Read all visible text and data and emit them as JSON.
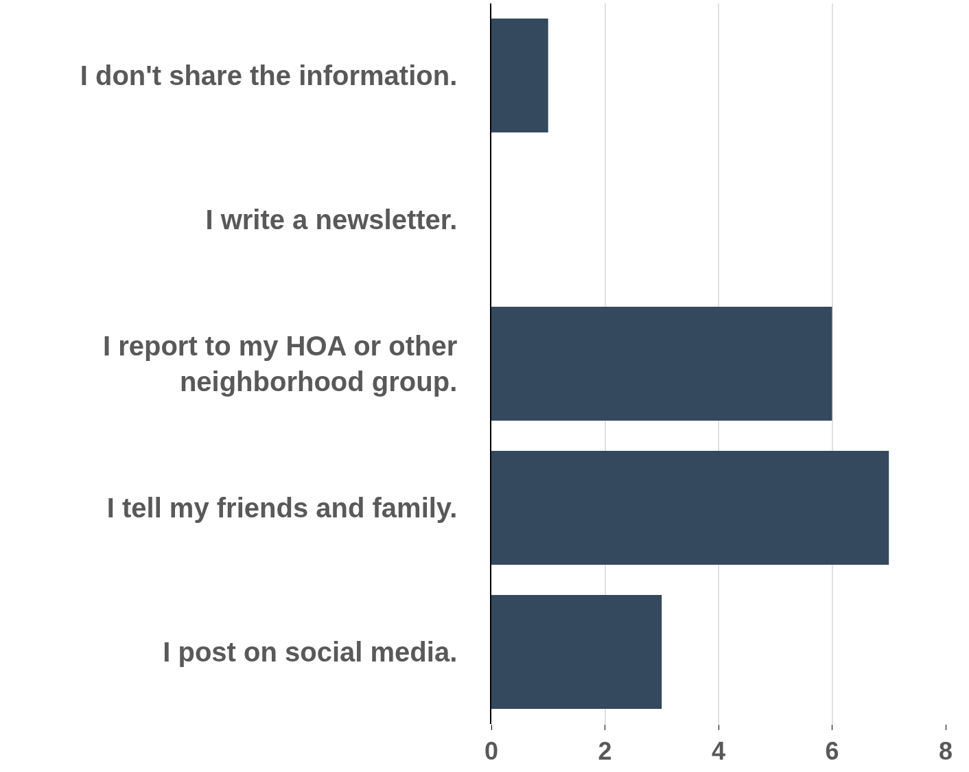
{
  "chart_data": {
    "type": "bar",
    "orientation": "horizontal",
    "categories": [
      "I don't share the information.",
      "I write a newsletter.",
      "I report to my HOA or other neighborhood group.",
      "I tell my friends and family.",
      "I post on social media."
    ],
    "values": [
      1,
      0,
      6,
      7,
      3
    ],
    "color": "#34495e",
    "xlim": [
      0,
      8
    ],
    "xticks": [
      0,
      2,
      4,
      6,
      8
    ],
    "grid": "x"
  }
}
